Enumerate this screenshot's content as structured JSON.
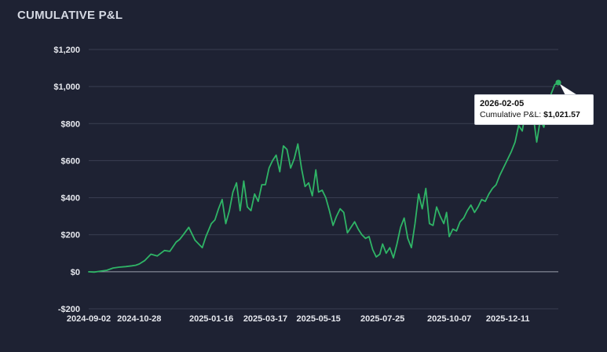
{
  "panel": {
    "title": "CUMULATIVE P&L"
  },
  "colors": {
    "background": "#1e2233",
    "line": "#2fb466",
    "grid": "#3a3f52",
    "zero_line": "#9aa0ad"
  },
  "tooltip": {
    "date": "2026-02-05",
    "label": "Cumulative P&L",
    "value": "$1,021.57"
  },
  "chart_data": {
    "type": "line",
    "title": "CUMULATIVE P&L",
    "xlabel": "",
    "ylabel": "",
    "ylim": [
      -200,
      1200
    ],
    "grid": "horizontal",
    "y_ticks": [
      {
        "value": 1200,
        "label": "$1,200"
      },
      {
        "value": 1000,
        "label": "$1,000"
      },
      {
        "value": 800,
        "label": "$800"
      },
      {
        "value": 600,
        "label": "$600"
      },
      {
        "value": 400,
        "label": "$400"
      },
      {
        "value": 200,
        "label": "$200"
      },
      {
        "value": 0,
        "label": "$0"
      },
      {
        "value": -200,
        "label": "-$200"
      }
    ],
    "x_ticks": [
      "2024-09-02",
      "2024-10-28",
      "2025-01-16",
      "2025-03-17",
      "2025-05-15",
      "2025-07-25",
      "2025-10-07",
      "2025-12-11"
    ],
    "x_range": [
      "2024-09-02",
      "2026-02-05"
    ],
    "series": [
      {
        "x": [
          "2024-09-02",
          "2024-09-08",
          "2024-09-15",
          "2024-09-22",
          "2024-09-29",
          "2024-10-06",
          "2024-10-13",
          "2024-10-20",
          "2024-10-24",
          "2024-10-28",
          "2024-11-03",
          "2024-11-10",
          "2024-11-17",
          "2024-11-21",
          "2024-11-25",
          "2024-12-01",
          "2024-12-08",
          "2024-12-12",
          "2024-12-16",
          "2024-12-22",
          "2024-12-29",
          "2025-01-02",
          "2025-01-06",
          "2025-01-10",
          "2025-01-16",
          "2025-01-20",
          "2025-01-24",
          "2025-01-28",
          "2025-02-01",
          "2025-02-05",
          "2025-02-09",
          "2025-02-13",
          "2025-02-17",
          "2025-02-21",
          "2025-02-25",
          "2025-03-01",
          "2025-03-05",
          "2025-03-09",
          "2025-03-13",
          "2025-03-17",
          "2025-03-21",
          "2025-03-25",
          "2025-03-29",
          "2025-04-02",
          "2025-04-06",
          "2025-04-10",
          "2025-04-14",
          "2025-04-18",
          "2025-04-22",
          "2025-04-26",
          "2025-04-30",
          "2025-05-04",
          "2025-05-08",
          "2025-05-12",
          "2025-05-15",
          "2025-05-19",
          "2025-05-23",
          "2025-05-27",
          "2025-05-31",
          "2025-06-04",
          "2025-06-08",
          "2025-06-12",
          "2025-06-16",
          "2025-06-20",
          "2025-06-24",
          "2025-06-28",
          "2025-07-02",
          "2025-07-06",
          "2025-07-10",
          "2025-07-14",
          "2025-07-18",
          "2025-07-22",
          "2025-07-25",
          "2025-07-29",
          "2025-08-02",
          "2025-08-06",
          "2025-08-10",
          "2025-08-14",
          "2025-08-18",
          "2025-08-22",
          "2025-08-26",
          "2025-08-30",
          "2025-09-03",
          "2025-09-07",
          "2025-09-11",
          "2025-09-15",
          "2025-09-19",
          "2025-09-23",
          "2025-09-27",
          "2025-10-01",
          "2025-10-04",
          "2025-10-07",
          "2025-10-11",
          "2025-10-15",
          "2025-10-19",
          "2025-10-23",
          "2025-10-27",
          "2025-10-31",
          "2025-11-04",
          "2025-11-08",
          "2025-11-12",
          "2025-11-16",
          "2025-11-20",
          "2025-11-24",
          "2025-11-28",
          "2025-12-02",
          "2025-12-06",
          "2025-12-11",
          "2025-12-15",
          "2025-12-19",
          "2025-12-23",
          "2025-12-27",
          "2025-12-31",
          "2026-01-04",
          "2026-01-08",
          "2026-01-12",
          "2026-01-16",
          "2026-01-20",
          "2026-01-24",
          "2026-01-28",
          "2026-02-01",
          "2026-02-05"
        ],
        "values": [
          0,
          -2,
          3,
          8,
          20,
          25,
          28,
          32,
          35,
          42,
          60,
          95,
          85,
          100,
          115,
          110,
          160,
          175,
          200,
          240,
          170,
          150,
          130,
          190,
          260,
          280,
          340,
          390,
          260,
          330,
          430,
          480,
          330,
          490,
          350,
          330,
          420,
          380,
          470,
          470,
          560,
          600,
          630,
          540,
          680,
          660,
          560,
          610,
          690,
          560,
          460,
          480,
          410,
          550,
          430,
          440,
          400,
          330,
          250,
          300,
          340,
          320,
          210,
          240,
          270,
          230,
          200,
          180,
          190,
          120,
          80,
          95,
          150,
          100,
          130,
          75,
          150,
          240,
          290,
          180,
          130,
          260,
          420,
          340,
          450,
          260,
          250,
          350,
          300,
          260,
          320,
          190,
          230,
          220,
          270,
          290,
          330,
          360,
          320,
          350,
          390,
          380,
          420,
          450,
          470,
          520,
          560,
          610,
          650,
          700,
          790,
          760,
          880,
          810,
          850,
          700,
          820,
          780,
          880,
          960,
          1010,
          1021.57
        ]
      }
    ]
  }
}
